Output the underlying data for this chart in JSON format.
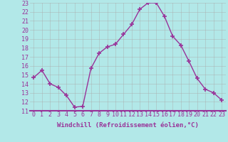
{
  "x": [
    0,
    1,
    2,
    3,
    4,
    5,
    6,
    7,
    8,
    9,
    10,
    11,
    12,
    13,
    14,
    15,
    16,
    17,
    18,
    19,
    20,
    21,
    22,
    23
  ],
  "y": [
    14.7,
    15.5,
    14.0,
    13.6,
    12.7,
    11.4,
    11.5,
    15.7,
    17.4,
    18.1,
    18.4,
    19.5,
    20.6,
    22.3,
    23.0,
    23.0,
    21.5,
    19.3,
    18.3,
    16.5,
    14.6,
    13.4,
    13.0,
    12.2
  ],
  "line_color": "#993399",
  "marker": "+",
  "marker_size": 4,
  "linewidth": 1.0,
  "background_color": "#b2e8e8",
  "grid_color": "#aaaaaa",
  "xlabel": "Windchill (Refroidissement éolien,°C)",
  "xlabel_color": "#993399",
  "xlabel_fontsize": 6.5,
  "tick_color": "#993399",
  "tick_fontsize": 6.0,
  "ylim": [
    11,
    23
  ],
  "xlim": [
    -0.5,
    23.5
  ]
}
